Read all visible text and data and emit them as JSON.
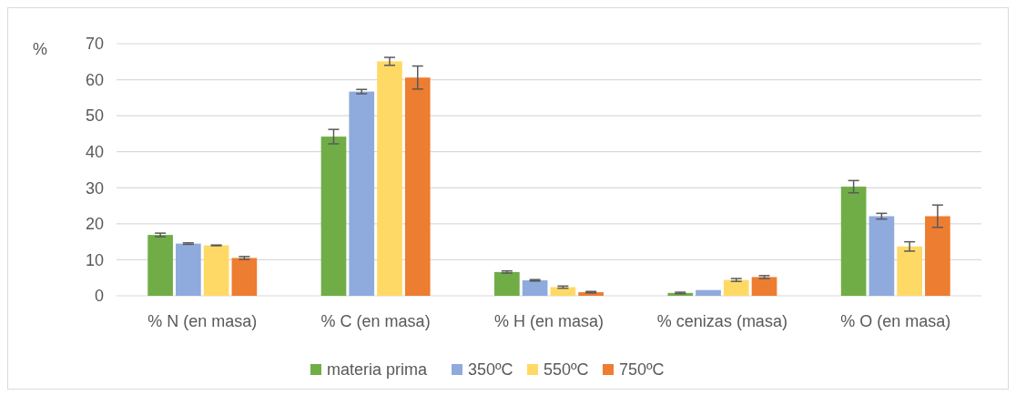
{
  "chart_data": {
    "type": "bar",
    "ylabel": "%",
    "categories": [
      "% N (en masa)",
      "% C (en masa)",
      "% H (en masa)",
      "% cenizas (masa)",
      "% O (en masa)"
    ],
    "series": [
      {
        "name": "materia prima",
        "color": "#70ad47",
        "values": [
          16.9,
          44.2,
          6.6,
          0.8,
          30.3
        ],
        "errors": [
          0.5,
          2.0,
          0.3,
          0.2,
          1.7
        ]
      },
      {
        "name": "350ºC",
        "color": "#8faadc",
        "values": [
          14.5,
          56.7,
          4.3,
          1.6,
          22.1
        ],
        "errors": [
          0.2,
          0.6,
          0.2,
          null,
          0.8
        ]
      },
      {
        "name": "550ºC",
        "color": "#ffd966",
        "values": [
          14.0,
          65.1,
          2.4,
          4.4,
          13.7
        ],
        "errors": [
          0.1,
          1.1,
          0.3,
          0.4,
          1.3
        ]
      },
      {
        "name": "750ºC",
        "color": "#ed7d31",
        "values": [
          10.5,
          60.6,
          1.0,
          5.2,
          22.1
        ],
        "errors": [
          0.4,
          3.2,
          0.2,
          0.4,
          3.1
        ]
      }
    ],
    "ylim": [
      0,
      70
    ],
    "yticks": [
      0,
      10,
      20,
      30,
      40,
      50,
      60,
      70
    ],
    "grid": "y",
    "legend": "bottom"
  }
}
